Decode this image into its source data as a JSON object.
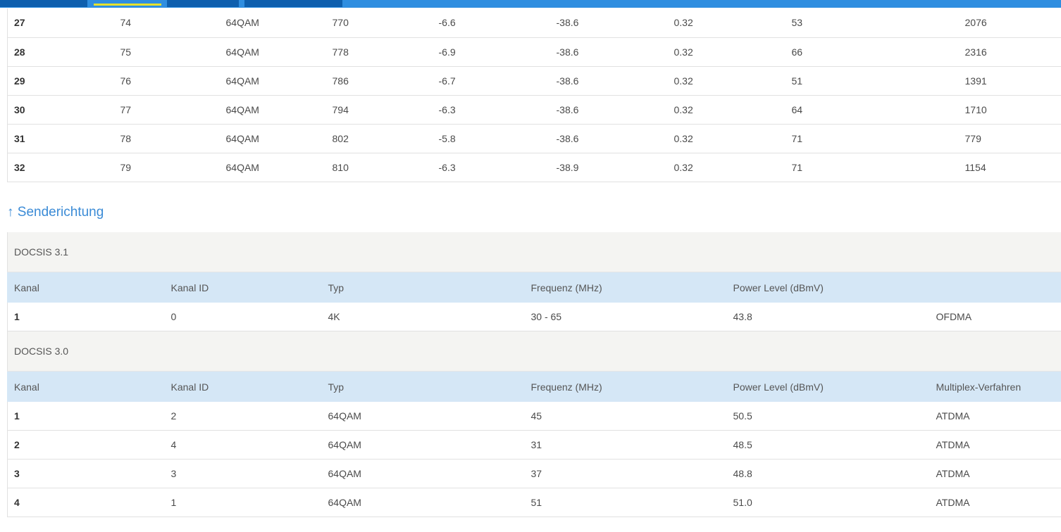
{
  "downstream": {
    "rows": [
      [
        "27",
        "74",
        "64QAM",
        "770",
        "-6.6",
        "-38.6",
        "0.32",
        "53",
        "2076"
      ],
      [
        "28",
        "75",
        "64QAM",
        "778",
        "-6.9",
        "-38.6",
        "0.32",
        "66",
        "2316"
      ],
      [
        "29",
        "76",
        "64QAM",
        "786",
        "-6.7",
        "-38.6",
        "0.32",
        "51",
        "1391"
      ],
      [
        "30",
        "77",
        "64QAM",
        "794",
        "-6.3",
        "-38.6",
        "0.32",
        "64",
        "1710"
      ],
      [
        "31",
        "78",
        "64QAM",
        "802",
        "-5.8",
        "-38.6",
        "0.32",
        "71",
        "779"
      ],
      [
        "32",
        "79",
        "64QAM",
        "810",
        "-6.3",
        "-38.9",
        "0.32",
        "71",
        "1154"
      ]
    ]
  },
  "upstream": {
    "title": "↑ Senderichtung",
    "docsis31": {
      "label": "DOCSIS 3.1",
      "headers": [
        "Kanal",
        "Kanal ID",
        "Typ",
        "Frequenz (MHz)",
        "Power Level (dBmV)",
        ""
      ],
      "rows": [
        [
          "1",
          "0",
          "4K",
          "30 - 65",
          "43.8",
          "OFDMA"
        ]
      ]
    },
    "docsis30": {
      "label": "DOCSIS 3.0",
      "headers": [
        "Kanal",
        "Kanal ID",
        "Typ",
        "Frequenz (MHz)",
        "Power Level (dBmV)",
        "Multiplex-Verfahren"
      ],
      "rows": [
        [
          "1",
          "2",
          "64QAM",
          "45",
          "50.5",
          "ATDMA"
        ],
        [
          "2",
          "4",
          "64QAM",
          "31",
          "48.5",
          "ATDMA"
        ],
        [
          "3",
          "3",
          "64QAM",
          "37",
          "48.8",
          "ATDMA"
        ],
        [
          "4",
          "1",
          "64QAM",
          "51",
          "51.0",
          "ATDMA"
        ]
      ]
    }
  },
  "colors": {
    "nav_bar": "#2f8ee0",
    "nav_tab": "#0e5fae",
    "active_indicator": "#e6e22e",
    "header_row": "#d5e7f6",
    "group_row": "#f4f4f2",
    "section_title": "#3b8bd6"
  }
}
